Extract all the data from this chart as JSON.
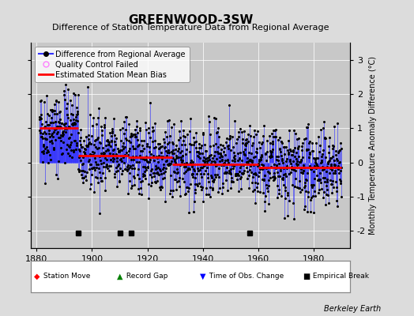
{
  "title": "GREENWOOD-3SW",
  "subtitle": "Difference of Station Temperature Data from Regional Average",
  "ylabel": "Monthly Temperature Anomaly Difference (°C)",
  "attribution": "Berkeley Earth",
  "xlim": [
    1878,
    1993
  ],
  "ylim": [
    -2.5,
    3.5
  ],
  "yticks": [
    -2,
    -1,
    0,
    1,
    2,
    3
  ],
  "xticks": [
    1880,
    1900,
    1920,
    1940,
    1960,
    1980
  ],
  "background_color": "#dcdcdc",
  "plot_bg_color": "#c8c8c8",
  "seed": 42,
  "segments": [
    {
      "start": 1881,
      "end": 1895,
      "bias": 1.0
    },
    {
      "start": 1895,
      "end": 1913,
      "bias": 0.2
    },
    {
      "start": 1913,
      "end": 1929,
      "bias": 0.15
    },
    {
      "start": 1929,
      "end": 1960,
      "bias": -0.05
    },
    {
      "start": 1960,
      "end": 1990,
      "bias": -0.15
    }
  ],
  "empirical_breaks": [
    1895,
    1910,
    1914,
    1957
  ],
  "line_color": "#3333ff",
  "bias_line_color": "red",
  "marker_color": "black",
  "title_fontsize": 11,
  "subtitle_fontsize": 8,
  "axis_label_fontsize": 7,
  "tick_fontsize": 8,
  "legend_fontsize": 7
}
